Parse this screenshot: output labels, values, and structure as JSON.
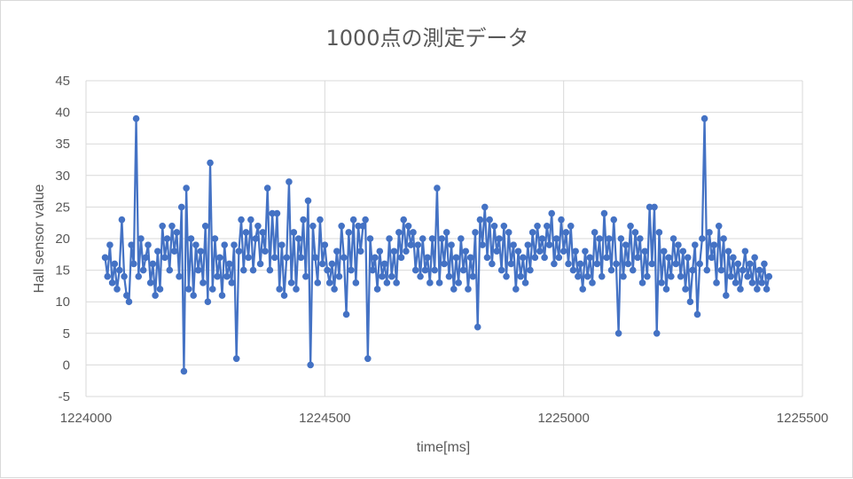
{
  "chart_data": {
    "type": "scatter",
    "title": "1000点の測定データ",
    "xlabel": "time[ms]",
    "ylabel": "Hall sensor value",
    "xlim": [
      1224000,
      1225500
    ],
    "ylim": [
      -5,
      45
    ],
    "x_ticks": [
      1224000,
      1224500,
      1225000,
      1225500
    ],
    "y_ticks": [
      -5,
      0,
      5,
      10,
      15,
      20,
      25,
      30,
      35,
      40,
      45
    ],
    "grid": true,
    "legend": "none",
    "series_color": "#4472c4",
    "markers": true,
    "lines": true,
    "series": [
      {
        "x_start": 1224040,
        "x_end": 1225430,
        "points": [
          [
            1224040,
            17
          ],
          [
            1224045,
            14
          ],
          [
            1224050,
            19
          ],
          [
            1224055,
            13
          ],
          [
            1224060,
            16
          ],
          [
            1224065,
            12
          ],
          [
            1224070,
            15
          ],
          [
            1224075,
            23
          ],
          [
            1224080,
            14
          ],
          [
            1224085,
            11
          ],
          [
            1224090,
            10
          ],
          [
            1224095,
            19
          ],
          [
            1224100,
            16
          ],
          [
            1224105,
            39
          ],
          [
            1224110,
            14
          ],
          [
            1224115,
            20
          ],
          [
            1224120,
            15
          ],
          [
            1224125,
            17
          ],
          [
            1224130,
            19
          ],
          [
            1224135,
            13
          ],
          [
            1224140,
            16
          ],
          [
            1224145,
            11
          ],
          [
            1224150,
            18
          ],
          [
            1224155,
            12
          ],
          [
            1224160,
            22
          ],
          [
            1224165,
            17
          ],
          [
            1224170,
            20
          ],
          [
            1224175,
            15
          ],
          [
            1224180,
            22
          ],
          [
            1224185,
            18
          ],
          [
            1224190,
            21
          ],
          [
            1224195,
            14
          ],
          [
            1224200,
            25
          ],
          [
            1224205,
            -1
          ],
          [
            1224210,
            28
          ],
          [
            1224215,
            12
          ],
          [
            1224220,
            20
          ],
          [
            1224225,
            11
          ],
          [
            1224230,
            19
          ],
          [
            1224235,
            15
          ],
          [
            1224240,
            18
          ],
          [
            1224245,
            13
          ],
          [
            1224250,
            22
          ],
          [
            1224255,
            10
          ],
          [
            1224260,
            32
          ],
          [
            1224265,
            12
          ],
          [
            1224270,
            20
          ],
          [
            1224275,
            14
          ],
          [
            1224280,
            17
          ],
          [
            1224285,
            11
          ],
          [
            1224290,
            19
          ],
          [
            1224295,
            14
          ],
          [
            1224300,
            16
          ],
          [
            1224305,
            13
          ],
          [
            1224310,
            19
          ],
          [
            1224315,
            1
          ],
          [
            1224320,
            18
          ],
          [
            1224325,
            23
          ],
          [
            1224330,
            15
          ],
          [
            1224335,
            21
          ],
          [
            1224340,
            17
          ],
          [
            1224345,
            23
          ],
          [
            1224350,
            15
          ],
          [
            1224355,
            20
          ],
          [
            1224360,
            22
          ],
          [
            1224365,
            16
          ],
          [
            1224370,
            21
          ],
          [
            1224375,
            18
          ],
          [
            1224380,
            28
          ],
          [
            1224385,
            15
          ],
          [
            1224390,
            24
          ],
          [
            1224395,
            17
          ],
          [
            1224400,
            24
          ],
          [
            1224405,
            12
          ],
          [
            1224410,
            19
          ],
          [
            1224415,
            11
          ],
          [
            1224420,
            17
          ],
          [
            1224425,
            29
          ],
          [
            1224430,
            13
          ],
          [
            1224435,
            21
          ],
          [
            1224440,
            12
          ],
          [
            1224445,
            20
          ],
          [
            1224450,
            17
          ],
          [
            1224455,
            23
          ],
          [
            1224460,
            14
          ],
          [
            1224465,
            26
          ],
          [
            1224470,
            0
          ],
          [
            1224475,
            22
          ],
          [
            1224480,
            17
          ],
          [
            1224485,
            13
          ],
          [
            1224490,
            23
          ],
          [
            1224495,
            16
          ],
          [
            1224500,
            19
          ],
          [
            1224505,
            15
          ],
          [
            1224510,
            13
          ],
          [
            1224515,
            16
          ],
          [
            1224520,
            12
          ],
          [
            1224525,
            18
          ],
          [
            1224530,
            14
          ],
          [
            1224535,
            22
          ],
          [
            1224540,
            17
          ],
          [
            1224545,
            8
          ],
          [
            1224550,
            21
          ],
          [
            1224555,
            15
          ],
          [
            1224560,
            23
          ],
          [
            1224565,
            13
          ],
          [
            1224570,
            22
          ],
          [
            1224575,
            18
          ],
          [
            1224580,
            22
          ],
          [
            1224585,
            23
          ],
          [
            1224590,
            1
          ],
          [
            1224595,
            20
          ],
          [
            1224600,
            15
          ],
          [
            1224605,
            17
          ],
          [
            1224610,
            12
          ],
          [
            1224615,
            18
          ],
          [
            1224620,
            14
          ],
          [
            1224625,
            16
          ],
          [
            1224630,
            13
          ],
          [
            1224635,
            20
          ],
          [
            1224640,
            14
          ],
          [
            1224645,
            18
          ],
          [
            1224650,
            13
          ],
          [
            1224655,
            21
          ],
          [
            1224660,
            17
          ],
          [
            1224665,
            23
          ],
          [
            1224670,
            18
          ],
          [
            1224675,
            22
          ],
          [
            1224680,
            19
          ],
          [
            1224685,
            21
          ],
          [
            1224690,
            15
          ],
          [
            1224695,
            19
          ],
          [
            1224700,
            14
          ],
          [
            1224705,
            20
          ],
          [
            1224710,
            15
          ],
          [
            1224715,
            17
          ],
          [
            1224720,
            13
          ],
          [
            1224725,
            20
          ],
          [
            1224730,
            15
          ],
          [
            1224735,
            28
          ],
          [
            1224740,
            13
          ],
          [
            1224745,
            20
          ],
          [
            1224750,
            16
          ],
          [
            1224755,
            21
          ],
          [
            1224760,
            14
          ],
          [
            1224765,
            19
          ],
          [
            1224770,
            12
          ],
          [
            1224775,
            17
          ],
          [
            1224780,
            13
          ],
          [
            1224785,
            20
          ],
          [
            1224790,
            15
          ],
          [
            1224795,
            18
          ],
          [
            1224800,
            12
          ],
          [
            1224805,
            17
          ],
          [
            1224810,
            14
          ],
          [
            1224815,
            21
          ],
          [
            1224820,
            6
          ],
          [
            1224825,
            23
          ],
          [
            1224830,
            19
          ],
          [
            1224835,
            25
          ],
          [
            1224840,
            17
          ],
          [
            1224845,
            23
          ],
          [
            1224850,
            16
          ],
          [
            1224855,
            22
          ],
          [
            1224860,
            18
          ],
          [
            1224865,
            20
          ],
          [
            1224870,
            15
          ],
          [
            1224875,
            22
          ],
          [
            1224880,
            14
          ],
          [
            1224885,
            21
          ],
          [
            1224890,
            16
          ],
          [
            1224895,
            19
          ],
          [
            1224900,
            12
          ],
          [
            1224905,
            18
          ],
          [
            1224910,
            14
          ],
          [
            1224915,
            17
          ],
          [
            1224920,
            13
          ],
          [
            1224925,
            19
          ],
          [
            1224930,
            15
          ],
          [
            1224935,
            21
          ],
          [
            1224940,
            17
          ],
          [
            1224945,
            22
          ],
          [
            1224950,
            18
          ],
          [
            1224955,
            20
          ],
          [
            1224960,
            17
          ],
          [
            1224965,
            22
          ],
          [
            1224970,
            19
          ],
          [
            1224975,
            24
          ],
          [
            1224980,
            16
          ],
          [
            1224985,
            20
          ],
          [
            1224990,
            17
          ],
          [
            1224995,
            23
          ],
          [
            1225000,
            18
          ],
          [
            1225005,
            21
          ],
          [
            1225010,
            16
          ],
          [
            1225015,
            22
          ],
          [
            1225020,
            15
          ],
          [
            1225025,
            18
          ],
          [
            1225030,
            14
          ],
          [
            1225035,
            16
          ],
          [
            1225040,
            12
          ],
          [
            1225045,
            18
          ],
          [
            1225050,
            14
          ],
          [
            1225055,
            17
          ],
          [
            1225060,
            13
          ],
          [
            1225065,
            21
          ],
          [
            1225070,
            16
          ],
          [
            1225075,
            20
          ],
          [
            1225080,
            14
          ],
          [
            1225085,
            24
          ],
          [
            1225090,
            17
          ],
          [
            1225095,
            20
          ],
          [
            1225100,
            15
          ],
          [
            1225105,
            23
          ],
          [
            1225110,
            16
          ],
          [
            1225115,
            5
          ],
          [
            1225120,
            20
          ],
          [
            1225125,
            14
          ],
          [
            1225130,
            19
          ],
          [
            1225135,
            16
          ],
          [
            1225140,
            22
          ],
          [
            1225145,
            15
          ],
          [
            1225150,
            21
          ],
          [
            1225155,
            17
          ],
          [
            1225160,
            20
          ],
          [
            1225165,
            13
          ],
          [
            1225170,
            18
          ],
          [
            1225175,
            14
          ],
          [
            1225180,
            25
          ],
          [
            1225185,
            16
          ],
          [
            1225190,
            25
          ],
          [
            1225195,
            5
          ],
          [
            1225200,
            21
          ],
          [
            1225205,
            13
          ],
          [
            1225210,
            18
          ],
          [
            1225215,
            12
          ],
          [
            1225220,
            17
          ],
          [
            1225225,
            14
          ],
          [
            1225230,
            20
          ],
          [
            1225235,
            16
          ],
          [
            1225240,
            19
          ],
          [
            1225245,
            14
          ],
          [
            1225250,
            18
          ],
          [
            1225255,
            12
          ],
          [
            1225260,
            17
          ],
          [
            1225265,
            10
          ],
          [
            1225270,
            15
          ],
          [
            1225275,
            19
          ],
          [
            1225280,
            8
          ],
          [
            1225285,
            16
          ],
          [
            1225290,
            20
          ],
          [
            1225295,
            39
          ],
          [
            1225300,
            15
          ],
          [
            1225305,
            21
          ],
          [
            1225310,
            17
          ],
          [
            1225315,
            19
          ],
          [
            1225320,
            13
          ],
          [
            1225325,
            22
          ],
          [
            1225330,
            15
          ],
          [
            1225335,
            20
          ],
          [
            1225340,
            11
          ],
          [
            1225345,
            18
          ],
          [
            1225350,
            14
          ],
          [
            1225355,
            17
          ],
          [
            1225360,
            13
          ],
          [
            1225365,
            16
          ],
          [
            1225370,
            12
          ],
          [
            1225375,
            15
          ],
          [
            1225380,
            18
          ],
          [
            1225385,
            14
          ],
          [
            1225390,
            16
          ],
          [
            1225395,
            13
          ],
          [
            1225400,
            17
          ],
          [
            1225405,
            12
          ],
          [
            1225410,
            15
          ],
          [
            1225415,
            13
          ],
          [
            1225420,
            16
          ],
          [
            1225425,
            12
          ],
          [
            1225430,
            14
          ]
        ]
      }
    ]
  }
}
